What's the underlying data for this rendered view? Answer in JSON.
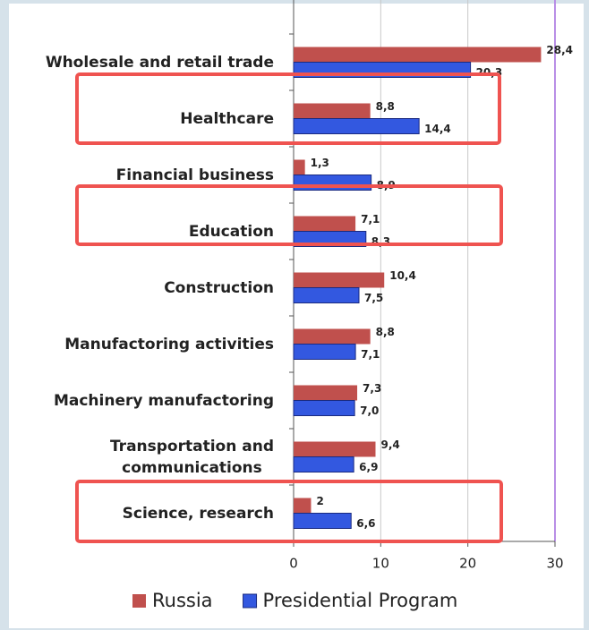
{
  "chart_data": {
    "type": "bar",
    "orientation": "horizontal",
    "categories": [
      "Wholesale and retail trade",
      "Healthcare",
      "Financial business",
      "Education",
      "Construction",
      "Manufactoring activities",
      "Machinery manufactoring",
      "Transportation and\ncommunications",
      "Science, research"
    ],
    "series": [
      {
        "name": "Russia",
        "color": "#c0504d",
        "values": [
          28.4,
          8.8,
          1.3,
          7.1,
          10.4,
          8.8,
          7.3,
          9.4,
          2
        ],
        "value_labels": [
          "28,4",
          "8,8",
          "1,3",
          "7,1",
          "10,4",
          "8,8",
          "7,3",
          "9,4",
          "2"
        ]
      },
      {
        "name": "Presidential Program",
        "color": "#3358e0",
        "values": [
          20.3,
          14.4,
          8.9,
          8.3,
          7.5,
          7.1,
          7.0,
          6.9,
          6.6
        ],
        "value_labels": [
          "20,3",
          "14,4",
          "8,9",
          "8,3",
          "7,5",
          "7,1",
          "7,0",
          "6,9",
          "6,6"
        ]
      }
    ],
    "xlim": [
      0,
      30
    ],
    "xticks": [
      0,
      10,
      20,
      30
    ],
    "grid": true,
    "legend": "bottom"
  }
}
